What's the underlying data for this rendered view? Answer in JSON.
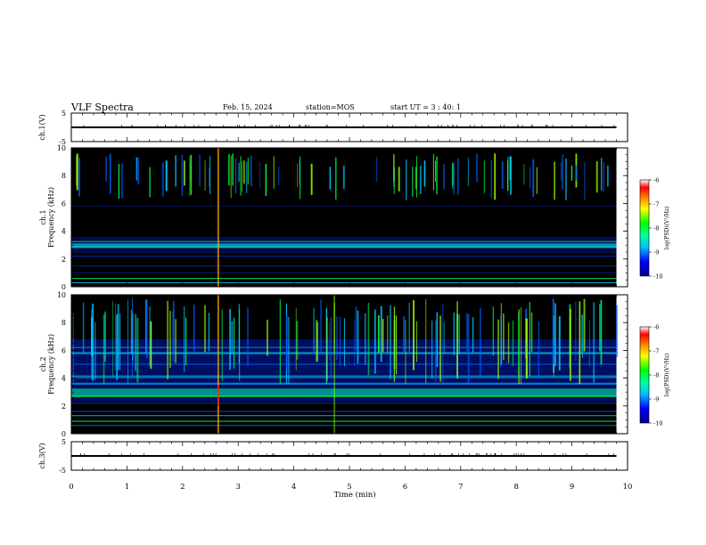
{
  "header": {
    "title": "VLF Spectra",
    "date": "Feb. 15, 2024",
    "station": "station=MOS",
    "start_ut": "start UT =  3 : 40: 1"
  },
  "chart_data": [
    {
      "type": "line",
      "panel": "ch.1(V)",
      "ylabel": "ch.1(V)",
      "ylim": [
        -5,
        5
      ],
      "yticks": [
        "5",
        "-5"
      ],
      "x": [
        0,
        9.8
      ],
      "values": [
        0,
        0
      ],
      "grid": false
    },
    {
      "type": "heatmap",
      "panel": "ch.1 spectrogram",
      "ylabel": "ch.1 Frequency (kHz)",
      "ylim": [
        0,
        10
      ],
      "yticks": [
        "0",
        "2",
        "4",
        "6",
        "8",
        "10"
      ],
      "xlim": [
        0,
        10
      ],
      "data_xlim": [
        0,
        9.8
      ],
      "colorbar": {
        "label": "log(PSD)(V²/Hz)",
        "range": [
          -10,
          -6
        ],
        "ticks": [
          "-6",
          "-7",
          "-8",
          "-9",
          "-10"
        ]
      }
    },
    {
      "type": "heatmap",
      "panel": "ch.2 spectrogram",
      "ylabel": "ch.2 Frequency (kHz)",
      "ylim": [
        0,
        10
      ],
      "yticks": [
        "0",
        "2",
        "4",
        "6",
        "8",
        "10"
      ],
      "xlim": [
        0,
        10
      ],
      "data_xlim": [
        0,
        9.8
      ],
      "colorbar": {
        "label": "log(PSD)(V²/Hz)",
        "range": [
          -10,
          -6
        ],
        "ticks": [
          "-6",
          "-7",
          "-8",
          "-9",
          "-10"
        ]
      }
    },
    {
      "type": "line",
      "panel": "ch.3(V)",
      "ylabel": "ch.3(V)",
      "ylim": [
        -5,
        5
      ],
      "yticks": [
        "5",
        "-5"
      ],
      "x": [
        0,
        9.8
      ],
      "values": [
        0,
        0
      ],
      "grid": false
    }
  ],
  "x_axis": {
    "label": "Time (min)",
    "range": [
      0,
      10
    ],
    "ticks": [
      "0",
      "1",
      "2",
      "3",
      "4",
      "5",
      "6",
      "7",
      "8",
      "9",
      "10"
    ]
  },
  "colors": {
    "background_spec": "#000000",
    "line": "#000000"
  }
}
